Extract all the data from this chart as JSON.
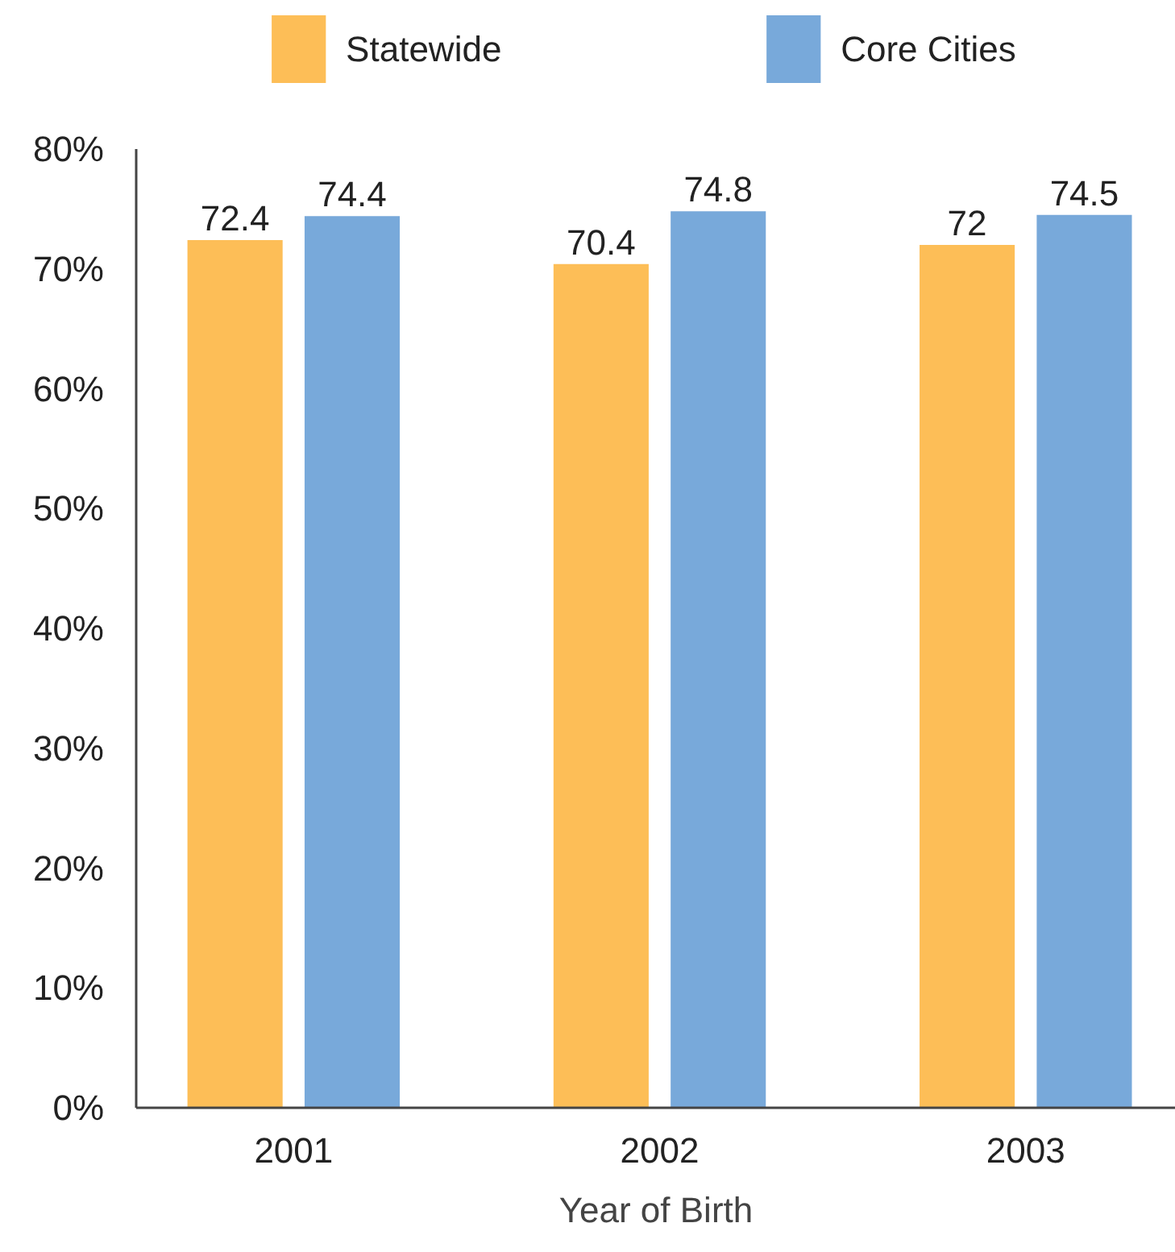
{
  "chart_data": {
    "type": "bar",
    "xlabel": "Year of Birth",
    "categories": [
      "2001",
      "2002",
      "2003"
    ],
    "series": [
      {
        "name": "Statewide",
        "color": "#fdbe57",
        "values": [
          72.4,
          70.4,
          72
        ]
      },
      {
        "name": "Core Cities",
        "color": "#78a9da",
        "values": [
          74.4,
          74.8,
          74.5
        ]
      }
    ],
    "ylim": [
      0,
      80
    ],
    "yticks": [
      {
        "value": 0,
        "label": "0%"
      },
      {
        "value": 10,
        "label": "10%"
      },
      {
        "value": 20,
        "label": "20%"
      },
      {
        "value": 30,
        "label": "30%"
      },
      {
        "value": 40,
        "label": "40%"
      },
      {
        "value": 50,
        "label": "50%"
      },
      {
        "value": 60,
        "label": "60%"
      },
      {
        "value": 70,
        "label": "70%"
      },
      {
        "value": 80,
        "label": "80%"
      }
    ],
    "data_labels": true,
    "grid": false,
    "legend": "top"
  }
}
